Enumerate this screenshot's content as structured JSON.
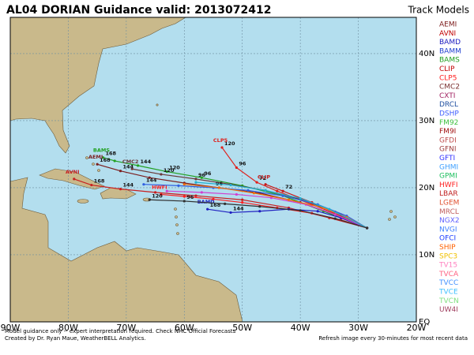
{
  "header": {
    "title": "AL04 DORIAN Guidance valid: 2013072412",
    "legend_title": "Track Models"
  },
  "map": {
    "lon_range": [
      -90,
      -20
    ],
    "lat_range": [
      0,
      45.4
    ],
    "lon_ticks": [
      {
        "value": -90,
        "label": "90W"
      },
      {
        "value": -80,
        "label": "80W"
      },
      {
        "value": -70,
        "label": "70W"
      },
      {
        "value": -60,
        "label": "60W"
      },
      {
        "value": -50,
        "label": "50W"
      },
      {
        "value": -40,
        "label": "40W"
      },
      {
        "value": -30,
        "label": "30W"
      },
      {
        "value": -20,
        "label": "20W"
      }
    ],
    "lat_ticks": [
      {
        "value": 0,
        "label": "EQ"
      },
      {
        "value": 10,
        "label": "10N"
      },
      {
        "value": 20,
        "label": "20N"
      },
      {
        "value": 30,
        "label": "30N"
      },
      {
        "value": 40,
        "label": "40N"
      }
    ],
    "tracks": [
      {
        "name": "CLP5",
        "color": "#e0201c",
        "lon": [
          -53.5,
          -51,
          -47.5,
          -44,
          -38,
          -33,
          -28.5
        ],
        "lat": [
          26,
          23,
          20.8,
          19.5,
          17.5,
          15.8,
          14
        ],
        "hours": [
          120,
          96,
          72,
          null,
          null,
          null,
          null
        ]
      },
      {
        "name": "CLIP",
        "color": "#c81818",
        "lon": [
          -46,
          -43,
          -38,
          -33,
          -28.5
        ],
        "lat": [
          20.5,
          19.5,
          17.8,
          16,
          14
        ],
        "hours": [
          null,
          72,
          null,
          null,
          null
        ]
      },
      {
        "name": "BAMS",
        "color": "#22a022",
        "lon": [
          -74,
          -72,
          -68,
          -63,
          -57,
          -50,
          -43,
          -36,
          -28.5
        ],
        "lat": [
          24.5,
          24,
          23.3,
          22.4,
          21.5,
          20.3,
          18.8,
          16.5,
          14
        ],
        "hours": [
          168,
          null,
          144,
          120,
          96,
          null,
          null,
          null,
          null
        ]
      },
      {
        "name": "AEMI",
        "color": "#7b1f1f",
        "lon": [
          -75,
          -71,
          -66,
          -60,
          -54,
          -47,
          -40,
          -34,
          -28.5
        ],
        "lat": [
          23.5,
          22.5,
          21.5,
          20.7,
          20,
          19.2,
          17.8,
          16,
          14
        ],
        "hours": [
          168,
          144,
          null,
          null,
          null,
          null,
          null,
          null,
          null
        ]
      },
      {
        "name": "AVNI",
        "color": "#c82020",
        "lon": [
          -79,
          -76,
          -71,
          -65,
          -58,
          -50,
          -42,
          -35,
          -28.5
        ],
        "lat": [
          21.3,
          20.4,
          19.8,
          19.3,
          18.8,
          18.2,
          17,
          15.5,
          14
        ],
        "hours": [
          null,
          168,
          144,
          null,
          null,
          null,
          null,
          null,
          null
        ]
      },
      {
        "name": "HWFI",
        "color": "#ff2020",
        "lon": [
          -64,
          -60,
          -55,
          -50,
          -44,
          -38,
          -33,
          -28.5
        ],
        "lat": [
          19,
          18.7,
          18.3,
          17.8,
          17,
          16.2,
          15.2,
          14
        ],
        "hours": [
          null,
          null,
          null,
          null,
          null,
          null,
          null,
          null
        ]
      },
      {
        "name": "BAMD",
        "color": "#2020c0",
        "lon": [
          -56,
          -52,
          -47,
          -42,
          -37,
          -33,
          -28.5
        ],
        "lat": [
          16.8,
          16.3,
          16.5,
          16.8,
          16.5,
          15.5,
          14
        ],
        "hours": [
          168,
          144,
          null,
          null,
          null,
          null,
          null
        ]
      },
      {
        "name": "CMC2",
        "color": "#6a3a3a",
        "lon": [
          -69,
          -64,
          -58,
          -52,
          -46,
          -40,
          -34,
          -28.5
        ],
        "lat": [
          22.8,
          22,
          21.3,
          20.5,
          19.6,
          18.3,
          16.4,
          14
        ],
        "hours": [
          null,
          120,
          96,
          null,
          null,
          null,
          null,
          null
        ]
      },
      {
        "color": "#3060e0",
        "lon": [
          -67,
          -61,
          -55,
          -49,
          -43,
          -37,
          -32,
          -28.5
        ],
        "lat": [
          20.5,
          20.3,
          20,
          19.6,
          18.8,
          17.5,
          15.8,
          14
        ],
        "hours": [
          144,
          null,
          96,
          null,
          null,
          null,
          null,
          null
        ]
      },
      {
        "color": "#d040d0",
        "lon": [
          -63,
          -57,
          -51,
          -45,
          -39,
          -34,
          -28.5
        ],
        "lat": [
          19.5,
          19.3,
          19,
          18.5,
          17.5,
          16,
          14
        ],
        "hours": [
          null,
          null,
          null,
          null,
          null,
          null,
          null
        ]
      },
      {
        "color": "#f07010",
        "lon": [
          -60,
          -54,
          -48,
          -42,
          -36,
          -32,
          -28.5
        ],
        "lat": [
          20.5,
          20,
          19.2,
          18.2,
          17,
          15.6,
          14
        ],
        "hours": [
          null,
          null,
          null,
          null,
          null,
          null,
          null
        ]
      },
      {
        "color": "#20b0d0",
        "lon": [
          -58,
          -52,
          -46,
          -40,
          -35,
          -28.5
        ],
        "lat": [
          20.8,
          20.4,
          19.6,
          18.4,
          16.8,
          14
        ],
        "hours": [
          null,
          null,
          null,
          null,
          null,
          null
        ]
      },
      {
        "color": "#303030",
        "lon": [
          -66,
          -60,
          -53,
          -47,
          -40,
          -34,
          -28.5
        ],
        "lat": [
          18.2,
          18,
          17.6,
          17.2,
          16.6,
          15.4,
          14
        ],
        "hours": [
          120,
          96,
          null,
          null,
          null,
          null,
          null
        ]
      }
    ]
  },
  "legend": [
    {
      "name": "AEMI",
      "color": "#7b1a1a"
    },
    {
      "name": "AVNI",
      "color": "#c00000"
    },
    {
      "name": "BAMD",
      "color": "#2020c0"
    },
    {
      "name": "BAMM",
      "color": "#2040d0"
    },
    {
      "name": "BAMS",
      "color": "#20a020"
    },
    {
      "name": "CLIP",
      "color": "#c00000"
    },
    {
      "name": "CLP5",
      "color": "#ff2020"
    },
    {
      "name": "CMC2",
      "color": "#7a3030"
    },
    {
      "name": "CXTI",
      "color": "#a02060"
    },
    {
      "name": "DRCL",
      "color": "#2050a0"
    },
    {
      "name": "DSHP",
      "color": "#4060ff"
    },
    {
      "name": "FM92",
      "color": "#40c040"
    },
    {
      "name": "FM9I",
      "color": "#a01010"
    },
    {
      "name": "GFDI",
      "color": "#c05050"
    },
    {
      "name": "GFNI",
      "color": "#a04040"
    },
    {
      "name": "GFTI",
      "color": "#3030ff"
    },
    {
      "name": "GHMI",
      "color": "#40a0ff"
    },
    {
      "name": "GPMI",
      "color": "#20c060"
    },
    {
      "name": "HWFI",
      "color": "#ff2020"
    },
    {
      "name": "LBAR",
      "color": "#c02020"
    },
    {
      "name": "LGEM",
      "color": "#e05030"
    },
    {
      "name": "MRCL",
      "color": "#c06060"
    },
    {
      "name": "NGX2",
      "color": "#6060ff"
    },
    {
      "name": "NVGI",
      "color": "#4080ff"
    },
    {
      "name": "OFCI",
      "color": "#2040ff"
    },
    {
      "name": "SHIP",
      "color": "#ff6000"
    },
    {
      "name": "SPC3",
      "color": "#f0c000"
    },
    {
      "name": "TV15",
      "color": "#ff80c0"
    },
    {
      "name": "TVCA",
      "color": "#ff6080"
    },
    {
      "name": "TVCC",
      "color": "#4090ff"
    },
    {
      "name": "TVCE",
      "color": "#40c0ff"
    },
    {
      "name": "TVCN",
      "color": "#80e080"
    },
    {
      "name": "UW4I",
      "color": "#a04060"
    }
  ],
  "footer": {
    "line1": "Model guidance only -- expert interpretation required.  Check NHC Official Forecasts",
    "line2": "Created by Dr. Ryan Maue, WeatherBELL Analytics.",
    "refresh": "Refresh image every 30-minutes for most recent data"
  }
}
